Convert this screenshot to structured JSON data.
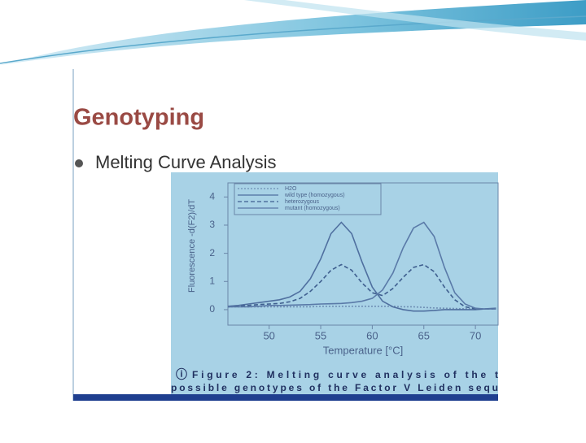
{
  "slide": {
    "title": "Genotyping",
    "bullet": "Melting Curve Analysis"
  },
  "caption": [
    "Figure 2: Melting curve analysis of the t",
    "possible genotypes of the Factor V Leiden sequ"
  ],
  "chart_data": {
    "type": "line",
    "x_label": "Temperature [°C]",
    "y_label": "Fluorescence -d(F2)/dT",
    "x": [
      46,
      47,
      48,
      49,
      50,
      51,
      52,
      53,
      54,
      55,
      56,
      57,
      58,
      59,
      60,
      61,
      62,
      63,
      64,
      65,
      66,
      67,
      68,
      69,
      70,
      71,
      72
    ],
    "series": [
      {
        "name": "H2O",
        "color": "#6f8fb5",
        "style": "dotted",
        "values": [
          0.1,
          0.1,
          0.1,
          0.1,
          0.1,
          0.1,
          0.1,
          0.1,
          0.1,
          0.12,
          0.12,
          0.12,
          0.12,
          0.12,
          0.12,
          0.12,
          0.12,
          0.1,
          0.1,
          0.08,
          0.06,
          0.05,
          0.04,
          0.03,
          0.03,
          0.03,
          0.03
        ]
      },
      {
        "name": "wild type (homozygous)",
        "color": "#4f6f9f",
        "style": "solid",
        "values": [
          0.12,
          0.15,
          0.2,
          0.25,
          0.3,
          0.35,
          0.45,
          0.65,
          1.1,
          1.8,
          2.7,
          3.1,
          2.7,
          1.7,
          0.8,
          0.3,
          0.1,
          0,
          -0.05,
          -0.05,
          -0.03,
          0,
          0,
          0,
          0,
          0.03,
          0.05
        ]
      },
      {
        "name": "heterozygous",
        "color": "#3f5f8f",
        "style": "dashed",
        "values": [
          0.1,
          0.12,
          0.15,
          0.18,
          0.2,
          0.22,
          0.28,
          0.4,
          0.65,
          1.0,
          1.4,
          1.6,
          1.4,
          0.95,
          0.6,
          0.5,
          0.75,
          1.15,
          1.5,
          1.6,
          1.35,
          0.8,
          0.35,
          0.1,
          0.03,
          0.02,
          0.03
        ]
      },
      {
        "name": "mutant (homozygous)",
        "color": "#5a7aa8",
        "style": "solid",
        "values": [
          0.1,
          0.1,
          0.1,
          0.12,
          0.15,
          0.15,
          0.16,
          0.17,
          0.18,
          0.2,
          0.21,
          0.22,
          0.25,
          0.3,
          0.4,
          0.7,
          1.3,
          2.2,
          2.9,
          3.1,
          2.6,
          1.5,
          0.6,
          0.2,
          0.05,
          0.02,
          0.03
        ]
      }
    ],
    "xlim": [
      46,
      72.2
    ],
    "ylim": [
      -0.55,
      4.5
    ],
    "xticks": [
      50,
      55,
      60,
      65,
      70
    ],
    "yticks": [
      0,
      1,
      2,
      3,
      4
    ]
  }
}
